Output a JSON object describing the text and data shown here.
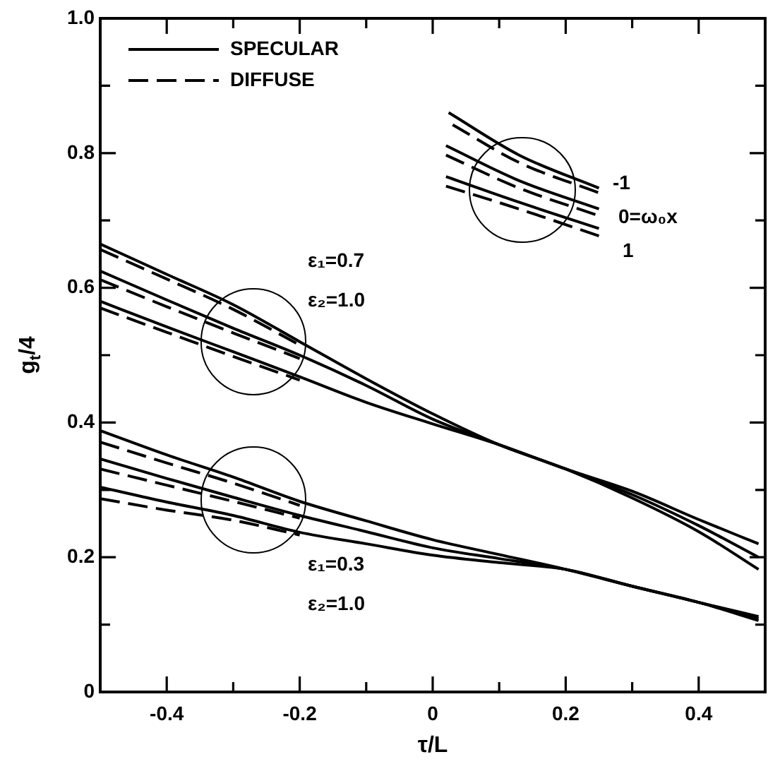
{
  "chart_data": {
    "type": "line",
    "xlabel": "τ/L",
    "ylabel": "g$_{t}$/4",
    "legend": "top left",
    "marker": "none",
    "xlim": [
      -0.5,
      0.5
    ],
    "ylim": [
      0,
      1
    ],
    "xticks": [
      -0.4,
      {
        "value": -0.3,
        "label": null
      },
      -0.2,
      {
        "value": -0.1,
        "label": null
      },
      0,
      {
        "value": 0.1,
        "label": null
      },
      0.2,
      {
        "value": 0.3,
        "label": null
      },
      0.4
    ],
    "yticks": [
      0,
      {
        "value": 0.1,
        "label": null
      },
      0.2,
      {
        "value": 0.3,
        "label": null
      },
      0.4,
      {
        "value": 0.5,
        "label": null
      },
      0.6,
      {
        "value": 0.7,
        "label": null
      },
      0.8,
      {
        "value": 0.9,
        "label": null
      },
      {
        "value": 1,
        "label": "1.0"
      }
    ],
    "x": [
      -0.5,
      -0.4,
      -0.3,
      -0.2,
      -0.1,
      0,
      0.1,
      0.2,
      0.3,
      0.4,
      0.49
    ],
    "series": [
      {
        "name": "SPECULAR",
        "color": "#000000",
        "line_style": "solid",
        "values": [
          0.665,
          0.62,
          0.575,
          0.52,
          0.465,
          0.413,
          0.367,
          0.331,
          0.288,
          0.238,
          0.182
        ]
      },
      {
        "color": "#000000",
        "line_style": "solid",
        "values": [
          0.625,
          0.582,
          0.54,
          0.5,
          0.455,
          0.405,
          0.367,
          0.331,
          0.293,
          0.247,
          0.2
        ]
      },
      {
        "color": "#000000",
        "line_style": "solid",
        "values": [
          0.58,
          0.542,
          0.505,
          0.468,
          0.43,
          0.398,
          0.367,
          0.331,
          0.298,
          0.256,
          0.22
        ]
      },
      {
        "name": "DIFFUSE",
        "color": "#000000",
        "line_style": "dashed",
        "x": [
          -0.5,
          -0.4,
          -0.3,
          -0.2
        ],
        "values": [
          0.657,
          0.613,
          0.568,
          0.515
        ]
      },
      {
        "color": "#000000",
        "line_style": "dashed",
        "x": [
          -0.5,
          -0.4,
          -0.3,
          -0.2
        ],
        "values": [
          0.612,
          0.572,
          0.533,
          0.495
        ]
      },
      {
        "color": "#000000",
        "line_style": "dashed",
        "x": [
          -0.5,
          -0.4,
          -0.3,
          -0.2
        ],
        "values": [
          0.57,
          0.534,
          0.498,
          0.463
        ]
      },
      {
        "color": "#000000",
        "line_style": "solid",
        "values": [
          0.388,
          0.352,
          0.319,
          0.283,
          0.254,
          0.226,
          0.204,
          0.182,
          0.157,
          0.133,
          0.112
        ]
      },
      {
        "color": "#000000",
        "line_style": "solid",
        "values": [
          0.346,
          0.317,
          0.289,
          0.262,
          0.238,
          0.214,
          0.198,
          0.182,
          0.157,
          0.133,
          0.109
        ]
      },
      {
        "color": "#000000",
        "line_style": "solid",
        "values": [
          0.304,
          0.282,
          0.262,
          0.237,
          0.22,
          0.203,
          0.192,
          0.182,
          0.157,
          0.133,
          0.106
        ]
      },
      {
        "color": "#000000",
        "line_style": "dashed",
        "x": [
          -0.5,
          -0.4,
          -0.3,
          -0.2
        ],
        "values": [
          0.371,
          0.34,
          0.31,
          0.277
        ]
      },
      {
        "color": "#000000",
        "line_style": "dashed",
        "x": [
          -0.5,
          -0.4,
          -0.3,
          -0.2
        ],
        "values": [
          0.331,
          0.307,
          0.283,
          0.258
        ]
      },
      {
        "color": "#000000",
        "line_style": "dashed",
        "x": [
          -0.5,
          -0.4,
          -0.3,
          -0.2
        ],
        "values": [
          0.287,
          0.27,
          0.255,
          0.233
        ]
      },
      {
        "color": "#000000",
        "line_style": "solid",
        "x": [
          0.024,
          0.13,
          0.25
        ],
        "values": [
          0.86,
          0.797,
          0.748
        ]
      },
      {
        "color": "#000000",
        "line_style": "dashed",
        "x": [
          0.03,
          0.13,
          0.25
        ],
        "values": [
          0.842,
          0.786,
          0.741
        ]
      },
      {
        "color": "#000000",
        "line_style": "solid",
        "x": [
          0.02,
          0.13,
          0.25
        ],
        "values": [
          0.811,
          0.759,
          0.717
        ]
      },
      {
        "color": "#000000",
        "line_style": "dashed",
        "x": [
          0.02,
          0.13,
          0.25
        ],
        "values": [
          0.797,
          0.748,
          0.707
        ]
      },
      {
        "color": "#000000",
        "line_style": "solid",
        "x": [
          0.02,
          0.13,
          0.25
        ],
        "values": [
          0.765,
          0.727,
          0.688
        ]
      },
      {
        "color": "#000000",
        "line_style": "dashed",
        "x": [
          0.02,
          0.13,
          0.25
        ],
        "values": [
          0.751,
          0.717,
          0.677
        ]
      }
    ],
    "annotations": [
      "ε₁=0.7",
      "ε₂=1.0",
      "ε₁=0.3",
      "ε₂=1.0",
      "-1",
      "0=ω₀x",
      "1"
    ]
  }
}
